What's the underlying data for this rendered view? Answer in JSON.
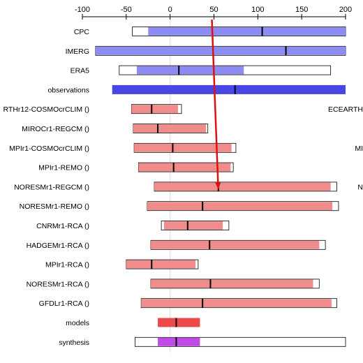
{
  "chart_data": {
    "type": "bar",
    "xlim": [
      -100,
      200
    ],
    "x_ticks": [
      -100,
      -50,
      0,
      50,
      100,
      150,
      200
    ],
    "grid": false,
    "colors": {
      "obs_light": "#8c8cf2",
      "obs_dark": "#4747e6",
      "model_light": "#f08c8c",
      "model_dark": "#ec4a4a",
      "synthesis": "#c04ae6",
      "arrow": "#dd1111",
      "zero_line": "#dddddd",
      "outline": "#000000"
    },
    "rows": [
      {
        "label": "CPC",
        "group": "obs",
        "outer": [
          -43,
          200
        ],
        "inner": [
          -25,
          200
        ],
        "median": 105
      },
      {
        "label": "IMERG",
        "group": "obs",
        "outer": [
          -85,
          200
        ],
        "inner": [
          -85,
          200
        ],
        "median": 132
      },
      {
        "label": "ERA5",
        "group": "obs",
        "outer": [
          -58,
          183
        ],
        "inner": [
          -38,
          84
        ],
        "median": 10
      },
      {
        "label": "observations",
        "group": "obs_combined",
        "outer": [
          -66,
          200
        ],
        "inner": [
          -66,
          200
        ],
        "median": 74
      },
      {
        "label": "RTHr12-COSMOcrCLIM ()",
        "group": "model",
        "outer": [
          -44,
          13
        ],
        "inner": [
          -44,
          9
        ],
        "median": -21
      },
      {
        "label": "MIROCr1-REGCM ()",
        "group": "model",
        "outer": [
          -42,
          43
        ],
        "inner": [
          -42,
          41
        ],
        "median": -14
      },
      {
        "label": "MPIr1-COSMOcrCLIM ()",
        "group": "model",
        "outer": [
          -41,
          75
        ],
        "inner": [
          -41,
          70
        ],
        "median": 3
      },
      {
        "label": "MPIr1-REMO ()",
        "group": "model",
        "outer": [
          -36,
          72
        ],
        "inner": [
          -36,
          69
        ],
        "median": 4
      },
      {
        "label": "NORESMr1-REGCM ()",
        "group": "model",
        "outer": [
          -18,
          190
        ],
        "inner": [
          -18,
          183
        ],
        "median": 55
      },
      {
        "label": "NORESMr1-REMO ()",
        "group": "model",
        "outer": [
          -26,
          192
        ],
        "inner": [
          -26,
          185
        ],
        "median": 37
      },
      {
        "label": "CNRMr1-RCA ()",
        "group": "model",
        "outer": [
          -10,
          67
        ],
        "inner": [
          -7,
          60
        ],
        "median": 20
      },
      {
        "label": "HADGEMr1-RCA ()",
        "group": "model",
        "outer": [
          -22,
          177
        ],
        "inner": [
          -22,
          170
        ],
        "median": 45
      },
      {
        "label": "MPIr1-RCA ()",
        "group": "model",
        "outer": [
          -50,
          32
        ],
        "inner": [
          -50,
          29
        ],
        "median": -21
      },
      {
        "label": "NORESMr1-RCA ()",
        "group": "model",
        "outer": [
          -22,
          170
        ],
        "inner": [
          -22,
          163
        ],
        "median": 46
      },
      {
        "label": "GFDLr1-RCA ()",
        "group": "model",
        "outer": [
          -33,
          190
        ],
        "inner": [
          -33,
          184
        ],
        "median": 37
      },
      {
        "label": "models",
        "group": "models_combined",
        "outer": [
          -14,
          34
        ],
        "inner": [
          -14,
          34
        ],
        "median": 7
      },
      {
        "label": "synthesis",
        "group": "synthesis",
        "outer": [
          -40,
          200
        ],
        "inner": [
          -14,
          34
        ],
        "median": 7
      }
    ],
    "right_edge_labels": [
      {
        "row": 4,
        "text": "ECEARTH"
      },
      {
        "row": 6,
        "text": "MI"
      },
      {
        "row": 8,
        "text": "N"
      }
    ],
    "arrow": {
      "x": 50,
      "from_row": 0,
      "to_row": 8
    }
  }
}
